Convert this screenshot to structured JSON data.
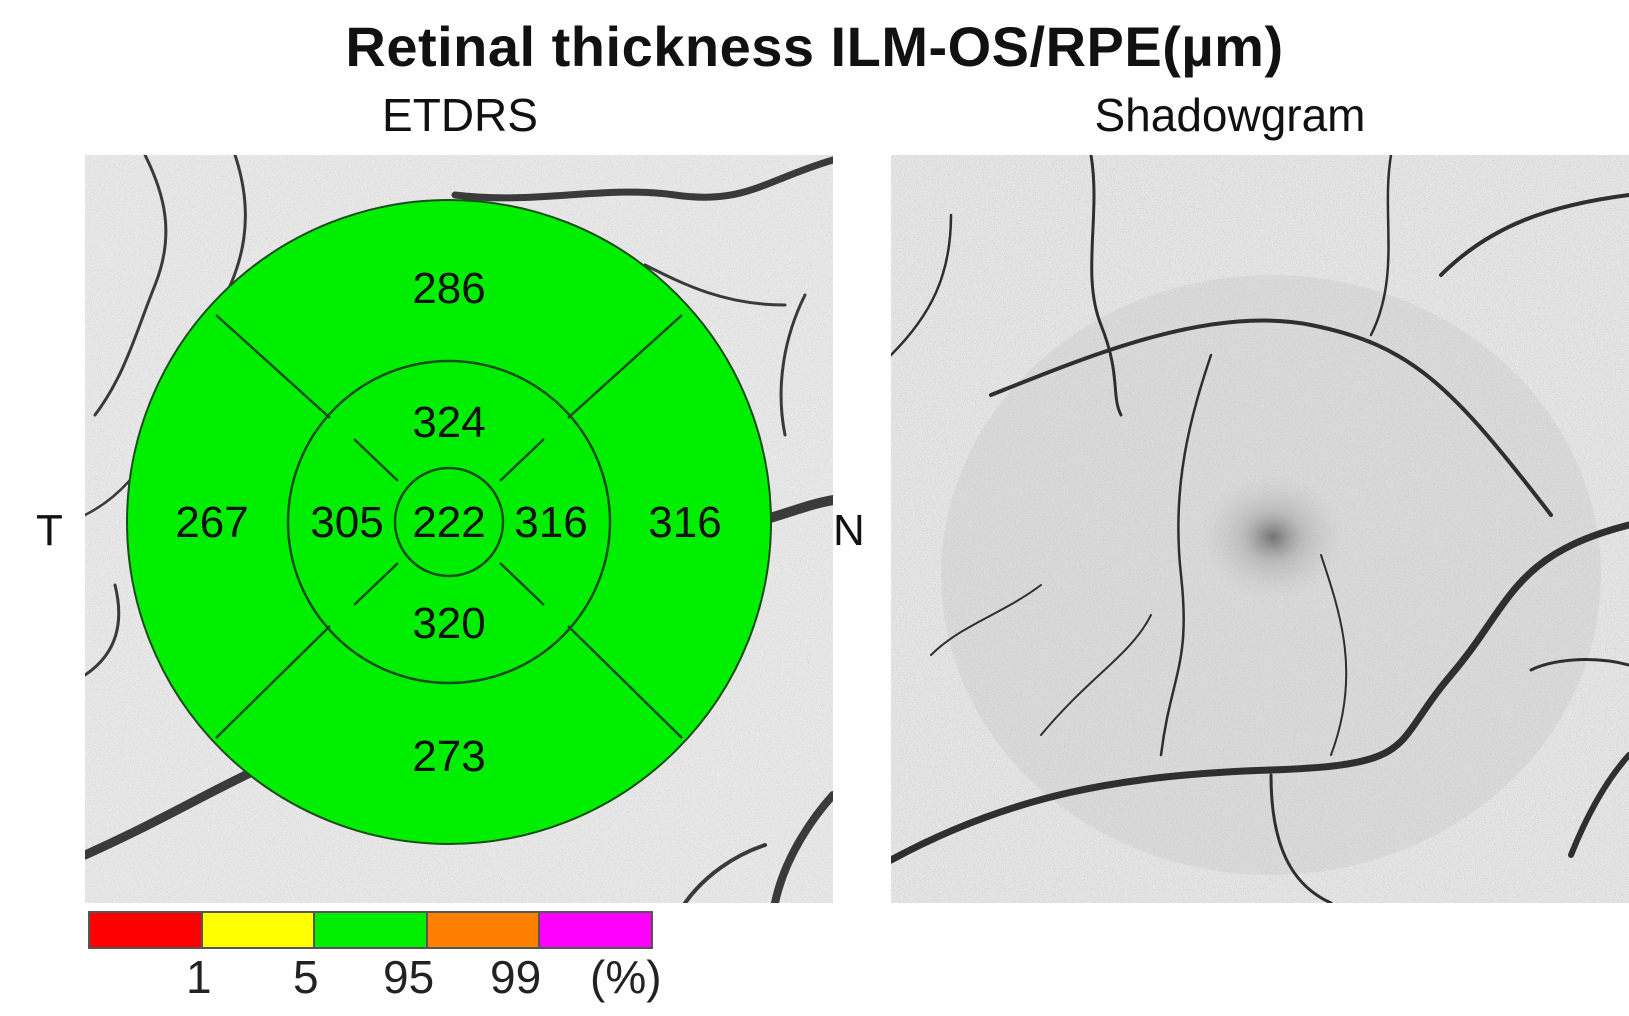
{
  "title": "Retinal thickness ILM-OS/RPE(µm)",
  "etdrs": {
    "heading": "ETDRS",
    "fill_color": "#00ee00",
    "line_color": "#1a4d1a",
    "center": "222",
    "inner": {
      "superior": "324",
      "inferior": "320",
      "temporal": "305",
      "nasal": "316"
    },
    "outer": {
      "superior": "286",
      "inferior": "273",
      "temporal": "267",
      "nasal": "316"
    },
    "temporal_label": "T",
    "nasal_label": "N"
  },
  "shadowgram": {
    "heading": "Shadowgram"
  },
  "legend": {
    "colors": [
      "#ff0000",
      "#ffff00",
      "#00ee00",
      "#ff8000",
      "#ff00ff"
    ],
    "ticks": [
      "1",
      "5",
      "95",
      "99",
      "(%)"
    ]
  }
}
